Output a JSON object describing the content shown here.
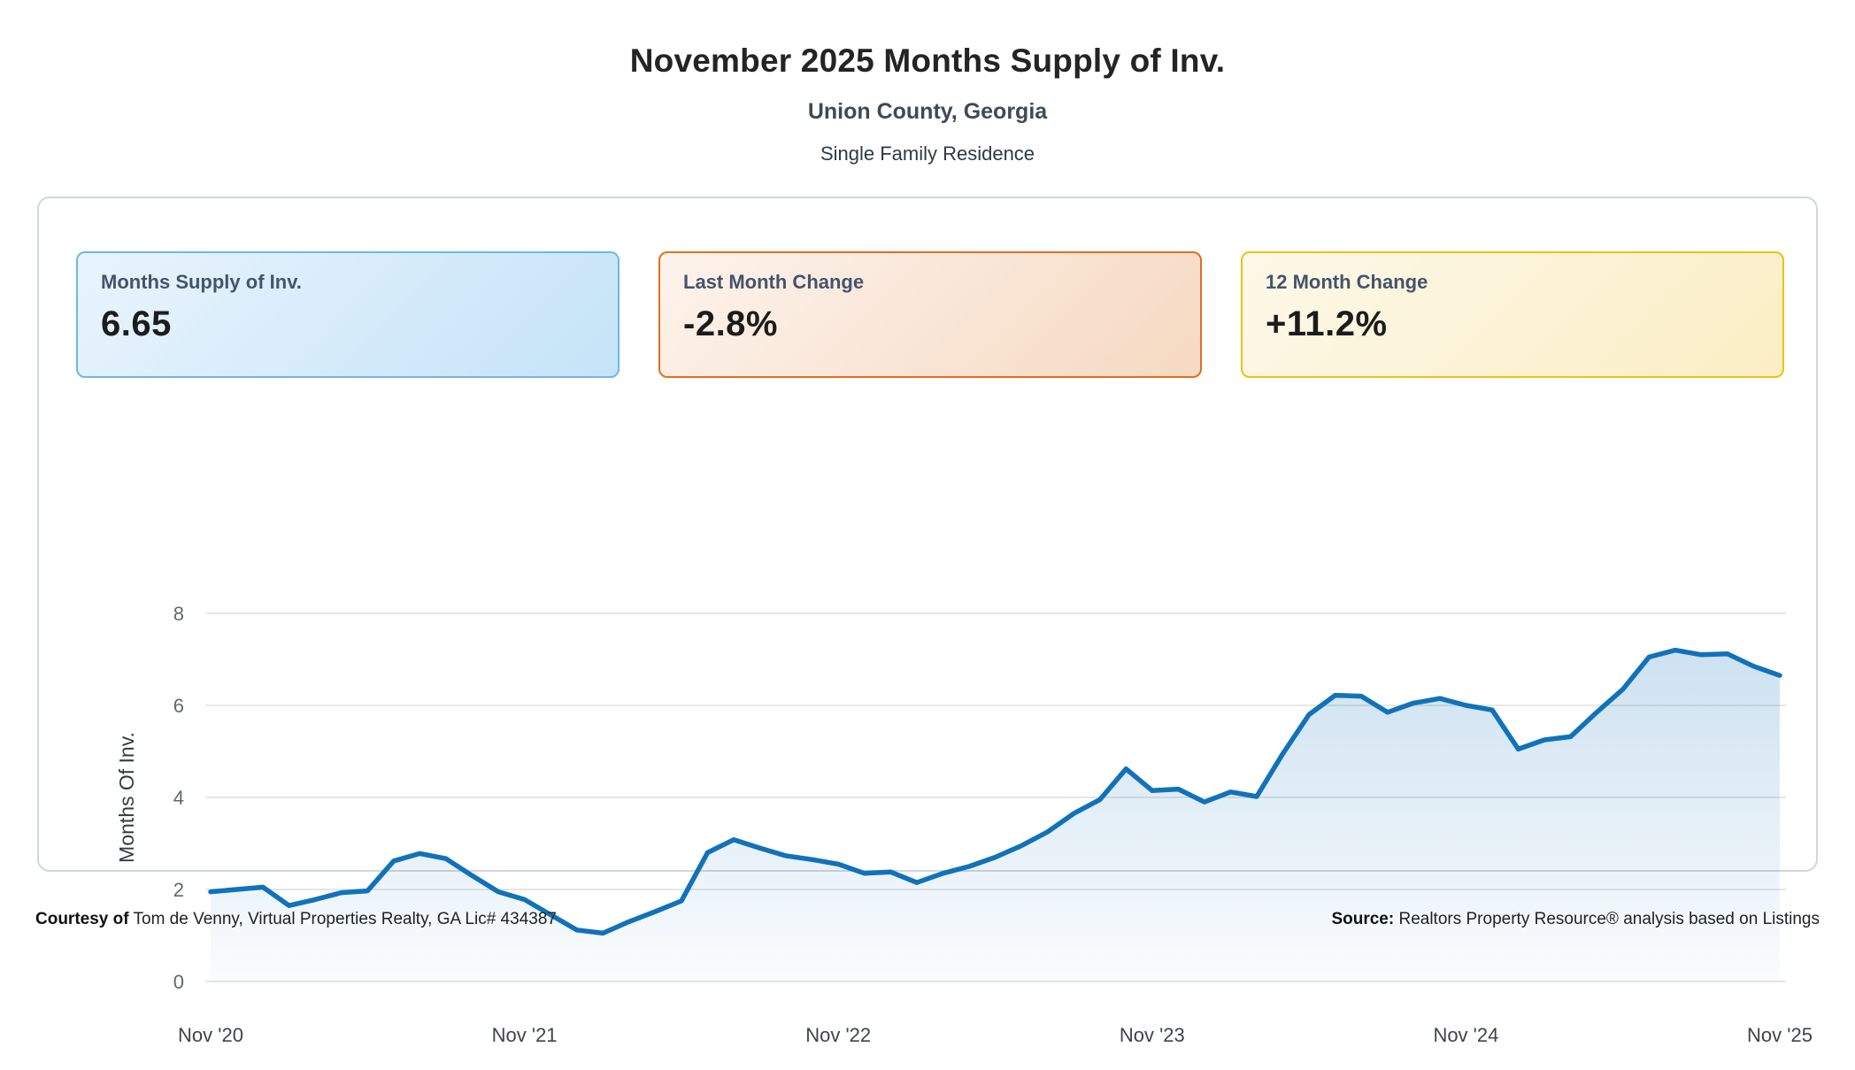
{
  "header": {
    "title": "November 2025 Months Supply of Inv.",
    "subtitle": "Union County, Georgia",
    "property_type": "Single Family Residence"
  },
  "stat_cards": [
    {
      "label": "Months Supply of Inv.",
      "value": "6.65",
      "accent_color": "#6fb7e9",
      "bg_gradient": [
        "#e9f4fd",
        "#c5e3f8"
      ]
    },
    {
      "label": "Last Month Change",
      "value": "-2.8%",
      "accent_color": "#e0701e",
      "bg_gradient": [
        "#fdf3ec",
        "#f6d9c2"
      ]
    },
    {
      "label": "12 Month Change",
      "value": "+11.2%",
      "accent_color": "#ecc214",
      "bg_gradient": [
        "#fdf8e9",
        "#fbeec4"
      ]
    }
  ],
  "chart_data": {
    "type": "area",
    "title": "Months Supply of Inventory, monthly, Nov 2020 - Nov 2025",
    "ylabel": "Months Of Inv.",
    "xlabel": "",
    "ylim": [
      0,
      8
    ],
    "y_ticks": [
      0,
      2,
      4,
      6,
      8
    ],
    "x_start": "Nov 2020",
    "x_end": "Nov 2025",
    "x_frequency": "monthly",
    "x_tick_labels": [
      "Nov '20",
      "Nov '21",
      "Nov '22",
      "Nov '23",
      "Nov '24",
      "Nov '25"
    ],
    "x_tick_positions": [
      0,
      12,
      24,
      36,
      48,
      60
    ],
    "grid": "horizontal",
    "legend": "none",
    "line_color": "#1172ba",
    "fill_color": "#1172ba",
    "values": [
      1.95,
      2.0,
      2.05,
      1.65,
      1.78,
      1.93,
      1.97,
      2.62,
      2.78,
      2.67,
      2.3,
      1.95,
      1.78,
      1.45,
      1.12,
      1.05,
      1.3,
      1.52,
      1.75,
      2.8,
      3.08,
      2.9,
      2.73,
      2.65,
      2.55,
      2.35,
      2.38,
      2.15,
      2.35,
      2.5,
      2.7,
      2.95,
      3.25,
      3.65,
      3.95,
      4.62,
      4.15,
      4.18,
      3.9,
      4.12,
      4.02,
      4.95,
      5.8,
      6.22,
      6.2,
      5.85,
      6.05,
      6.15,
      6.0,
      5.9,
      5.05,
      5.25,
      5.32,
      5.85,
      6.35,
      7.05,
      7.2,
      7.1,
      7.12,
      6.85,
      6.65
    ]
  },
  "footer": {
    "courtesy_label": "Courtesy of",
    "courtesy_text": " Tom de Venny, Virtual Properties Realty, GA Lic# 434387",
    "source_label": "Source:",
    "source_text": " Realtors Property Resource® analysis based on Listings"
  }
}
